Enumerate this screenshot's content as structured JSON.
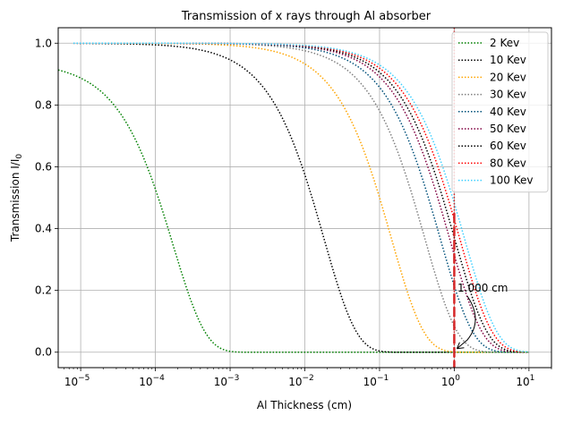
{
  "chart_data": {
    "type": "line",
    "title": "Transmission of x rays through Al absorber",
    "xlabel": "Al Thickness (cm)",
    "ylabel": "Transmission I/I",
    "ylabel_subscript": "0",
    "xscale": "log",
    "xlim": [
      5e-06,
      20
    ],
    "ylim": [
      -0.05,
      1.05
    ],
    "x_ticks": [
      {
        "base": "10",
        "exp": "−5",
        "value": 1e-05
      },
      {
        "base": "10",
        "exp": "−4",
        "value": 0.0001
      },
      {
        "base": "10",
        "exp": "−3",
        "value": 0.001
      },
      {
        "base": "10",
        "exp": "−2",
        "value": 0.01
      },
      {
        "base": "10",
        "exp": "−1",
        "value": 0.1
      },
      {
        "base": "10",
        "exp": "0",
        "value": 1
      },
      {
        "base": "10",
        "exp": "1",
        "value": 10
      }
    ],
    "y_ticks": [
      {
        "label": "0.0",
        "value": 0.0
      },
      {
        "label": "0.2",
        "value": 0.2
      },
      {
        "label": "0.4",
        "value": 0.4
      },
      {
        "label": "0.6",
        "value": 0.6
      },
      {
        "label": "0.8",
        "value": 0.8
      },
      {
        "label": "1.0",
        "value": 1.0
      }
    ],
    "grid": true,
    "legend_position": "top-right",
    "series": [
      {
        "name": "2 Kev",
        "color": "#008000",
        "t0": 0.94,
        "half_cm": 0.00012,
        "x_start": 5e-06
      },
      {
        "name": "10 Kev",
        "color": "#000000",
        "t0": 1.0,
        "half_cm": 0.0125,
        "x_start": 8e-06
      },
      {
        "name": "20 Kev",
        "color": "#ffa500",
        "t0": 1.0,
        "half_cm": 0.1,
        "x_start": 8e-06
      },
      {
        "name": "30 Kev",
        "color": "#808080",
        "t0": 1.0,
        "half_cm": 0.28,
        "x_start": 8e-06
      },
      {
        "name": "40 Kev",
        "color": "#00507a",
        "t0": 1.0,
        "half_cm": 0.45,
        "x_start": 8e-06
      },
      {
        "name": "50 Kev",
        "color": "#800040",
        "t0": 1.0,
        "half_cm": 0.6,
        "x_start": 8e-06
      },
      {
        "name": "60 Kev",
        "color": "#000000",
        "t0": 1.0,
        "half_cm": 0.7,
        "x_start": 8e-06
      },
      {
        "name": "80 Kev",
        "color": "#ff0000",
        "t0": 1.0,
        "half_cm": 0.82,
        "x_start": 8e-06
      },
      {
        "name": "100 Kev",
        "color": "#40d0ff",
        "t0": 1.0,
        "half_cm": 0.95,
        "x_start": 8e-06
      }
    ],
    "x_end": 10,
    "vline": {
      "x": 1.0,
      "color": "#d62728"
    },
    "annotation": {
      "text": "1.000 cm",
      "x": 1.0,
      "y": 0.0
    }
  }
}
